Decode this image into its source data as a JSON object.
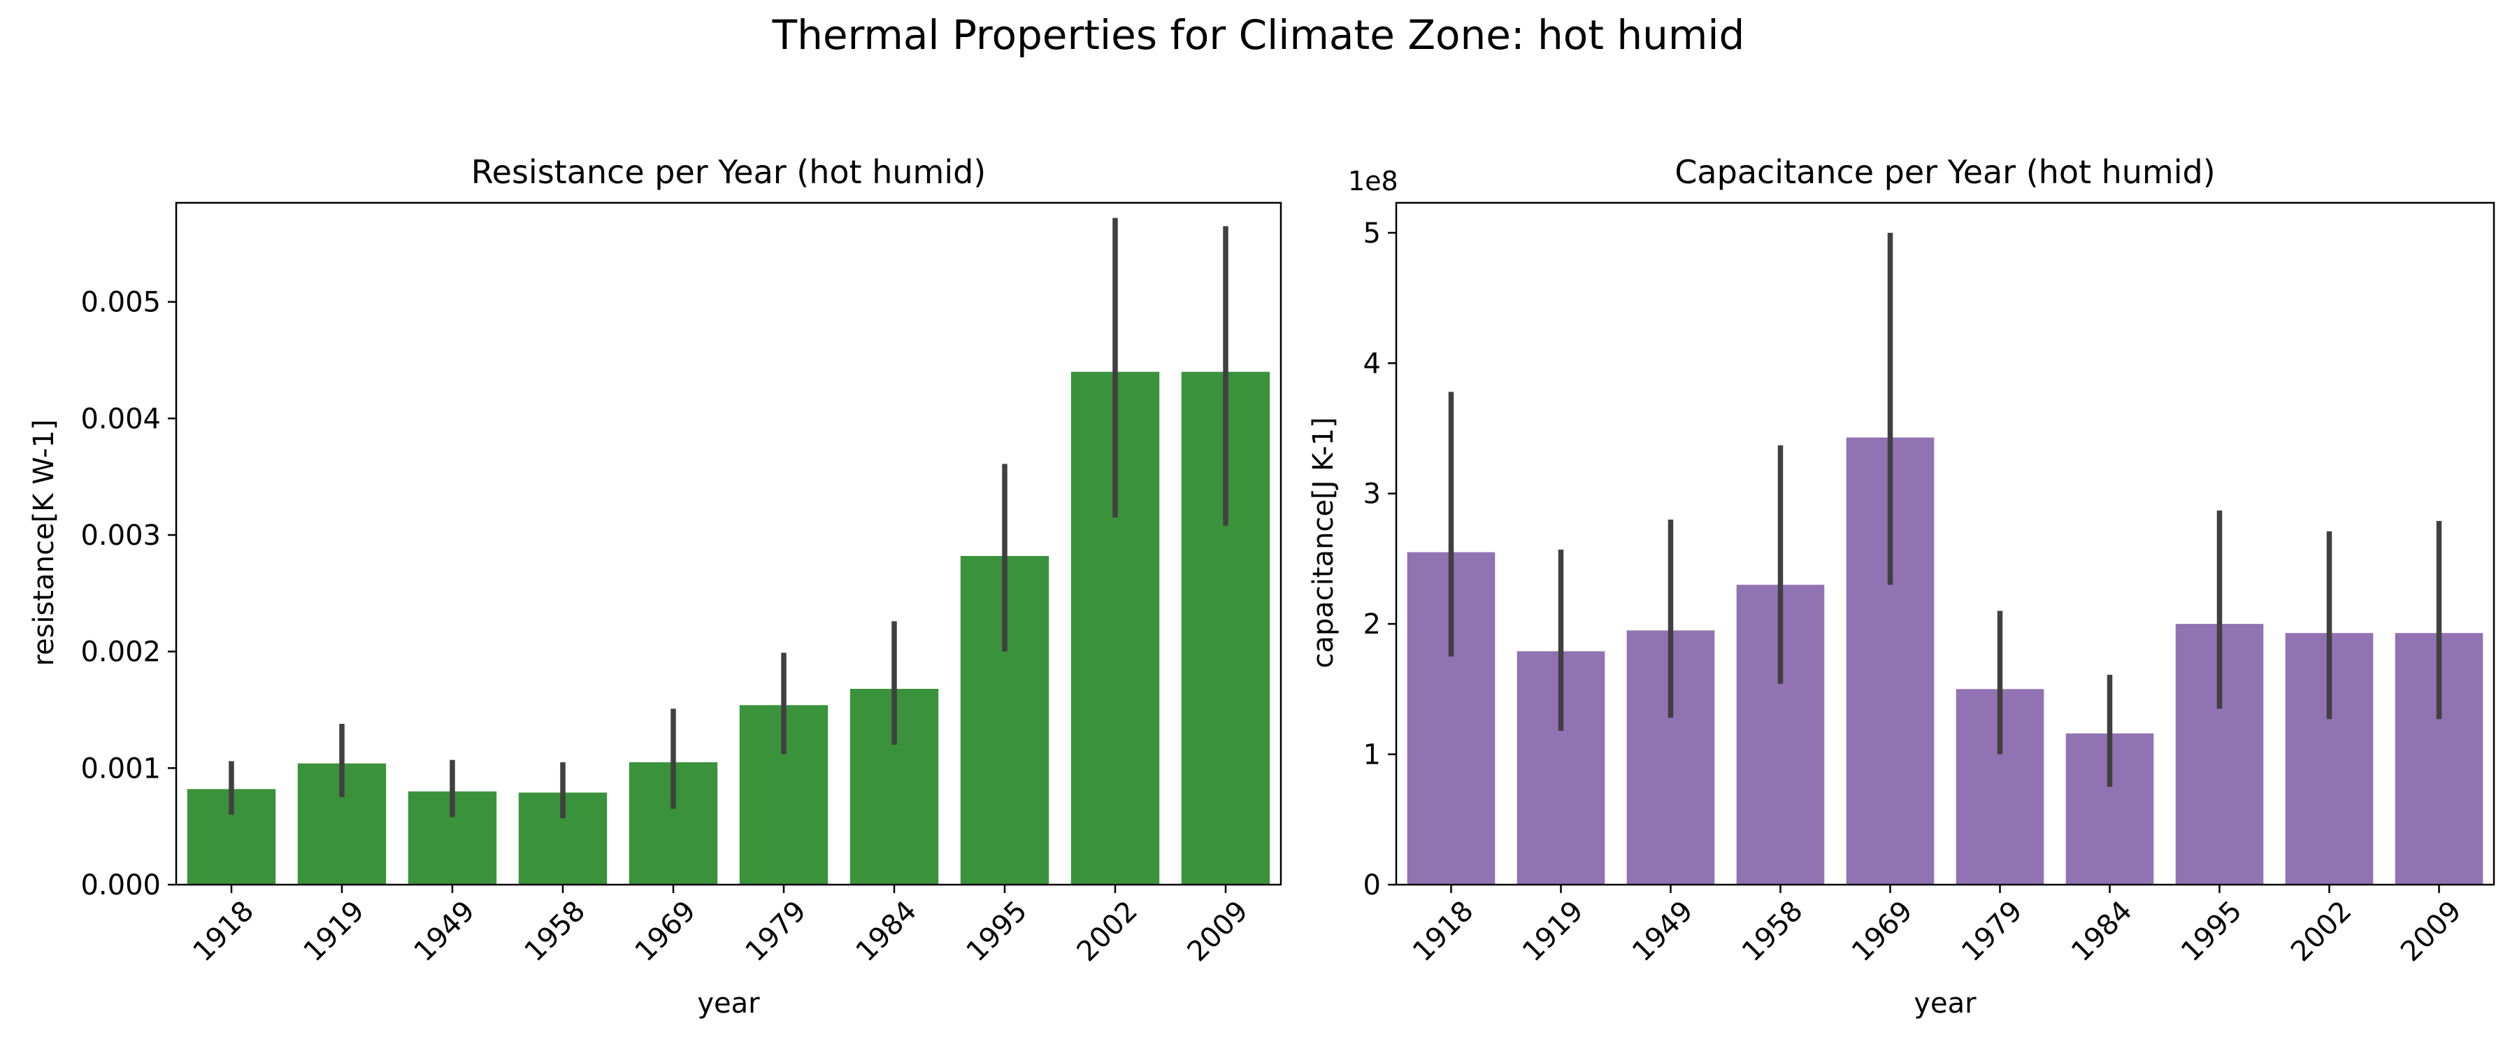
{
  "suptitle": "Thermal Properties for Climate Zone: hot humid",
  "chart_data": [
    {
      "type": "bar",
      "title": "Resistance per Year (hot humid)",
      "xlabel": "year",
      "ylabel": "resistance[K W-1]",
      "categories": [
        "1918",
        "1919",
        "1949",
        "1958",
        "1969",
        "1979",
        "1984",
        "1995",
        "2002",
        "2009"
      ],
      "values": [
        0.00082,
        0.00104,
        0.0008,
        0.00079,
        0.00105,
        0.00154,
        0.00168,
        0.00282,
        0.0044,
        0.0044
      ],
      "error_low": [
        0.0006,
        0.00075,
        0.00058,
        0.00057,
        0.00065,
        0.00112,
        0.0012,
        0.002,
        0.00315,
        0.00308
      ],
      "error_high": [
        0.00106,
        0.00138,
        0.00107,
        0.00105,
        0.00151,
        0.00199,
        0.00226,
        0.00361,
        0.00572,
        0.00565
      ],
      "ylim": [
        0,
        0.00585
      ],
      "yticks": [
        0.0,
        0.001,
        0.002,
        0.003,
        0.004,
        0.005
      ],
      "ytick_labels": [
        "0.000",
        "0.001",
        "0.002",
        "0.003",
        "0.004",
        "0.005"
      ],
      "offset_label": "",
      "bar_color": "#3a923a",
      "error_color": "#404040",
      "grid": false
    },
    {
      "type": "bar",
      "title": "Capacitance per Year (hot humid)",
      "xlabel": "year",
      "ylabel": "capacitance[J K-1]",
      "categories": [
        "1918",
        "1919",
        "1949",
        "1958",
        "1969",
        "1979",
        "1984",
        "1995",
        "2002",
        "2009"
      ],
      "values": [
        255000000,
        179000000,
        195000000,
        230000000,
        343000000,
        150000000,
        116000000,
        200000000,
        193000000,
        193000000
      ],
      "error_low": [
        175000000,
        118000000,
        128000000,
        154000000,
        230000000,
        100000000,
        75000000,
        135000000,
        127000000,
        127000000
      ],
      "error_high": [
        378000000,
        257000000,
        280000000,
        337000000,
        500000000,
        210000000,
        161000000,
        287000000,
        271000000,
        279000000
      ],
      "ylim": [
        0,
        523000000
      ],
      "yticks": [
        0,
        100000000,
        200000000,
        300000000,
        400000000,
        500000000
      ],
      "ytick_labels": [
        "0",
        "1",
        "2",
        "3",
        "4",
        "5"
      ],
      "offset_label": "1e8",
      "bar_color": "#9172b2",
      "error_color": "#404040",
      "grid": false
    }
  ]
}
